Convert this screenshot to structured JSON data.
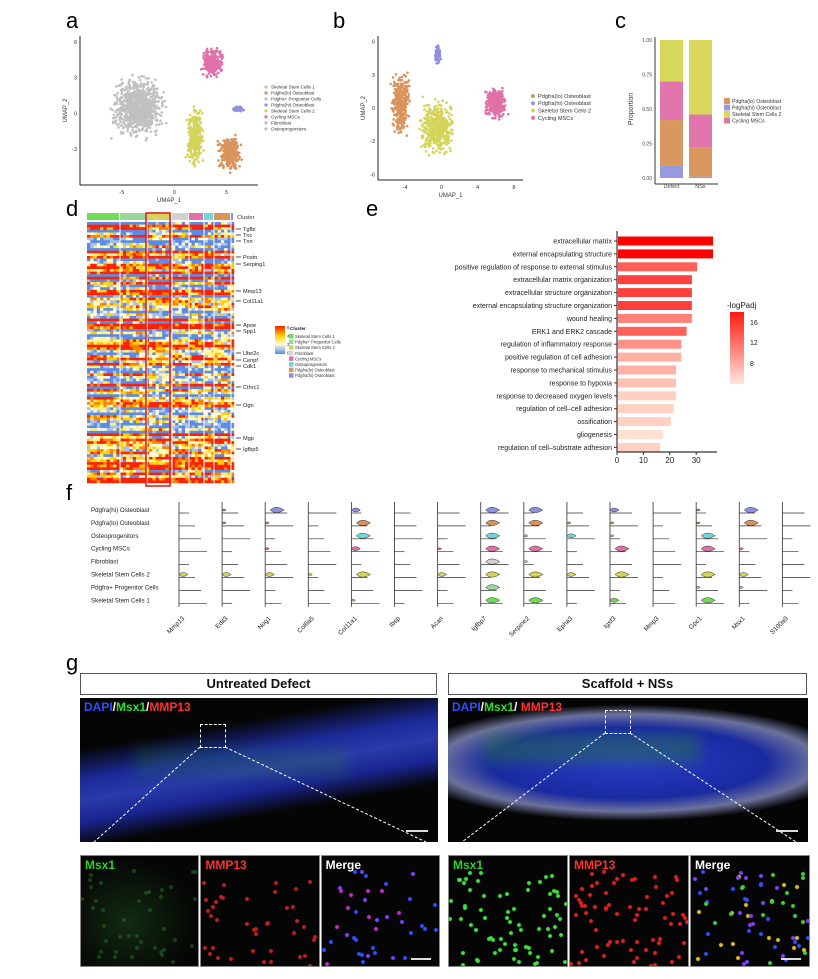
{
  "panel_labels": [
    "a",
    "b",
    "c",
    "d",
    "e",
    "f",
    "g"
  ],
  "chart_data": [
    {
      "panel": "a",
      "type": "scatter",
      "xlabel": "UMAP_1",
      "ylabel": "UMAP_2",
      "xticks": [
        -5,
        0,
        5
      ],
      "yticks": [
        -3,
        0,
        3,
        6
      ],
      "xlim": [
        -9,
        8
      ],
      "ylim": [
        -6,
        6.5
      ],
      "legend": [
        {
          "name": "Skeletal Stem Cells 1",
          "color": "#c0c0c0"
        },
        {
          "name": "Pdgfra(lo) Osteoblast",
          "color": "#d9935c"
        },
        {
          "name": "Pdgfra+ Progenitor Cells",
          "color": "#c0c0c0"
        },
        {
          "name": "Pdgfra(hi) Osteoblast",
          "color": "#8f8fe0"
        },
        {
          "name": "Skeletal Stem Cells 2",
          "color": "#d4d45a"
        },
        {
          "name": "Cycling MSCs",
          "color": "#e070a8"
        },
        {
          "name": "Fibroblast",
          "color": "#c0c0c0"
        },
        {
          "name": "Osteoprogenitors",
          "color": "#c0c0c0"
        }
      ],
      "clusters": [
        {
          "color": "#c0c0c0",
          "center": [
            -3.5,
            0.5
          ],
          "spread": [
            3,
            3
          ],
          "n": 900
        },
        {
          "color": "#e070a8",
          "center": [
            3.7,
            4.3
          ],
          "spread": [
            1.3,
            1.5
          ],
          "n": 250
        },
        {
          "color": "#d4d45a",
          "center": [
            2,
            -2
          ],
          "spread": [
            1,
            3
          ],
          "n": 350
        },
        {
          "color": "#d9935c",
          "center": [
            5.3,
            -3.3
          ],
          "spread": [
            1.3,
            1.8
          ],
          "n": 300
        },
        {
          "color": "#8f8fe0",
          "center": [
            6.2,
            0.4
          ],
          "spread": [
            0.8,
            0.3
          ],
          "n": 40
        }
      ]
    },
    {
      "panel": "b",
      "type": "scatter",
      "xlabel": "UMAP_1",
      "ylabel": "UMAP_2",
      "xticks": [
        -4,
        0,
        4,
        8
      ],
      "yticks": [
        -6,
        -3,
        0,
        3,
        6
      ],
      "xlim": [
        -7,
        9
      ],
      "ylim": [
        -6.5,
        6.5
      ],
      "legend": [
        {
          "name": "Pdgfra(lo) Osteoblast",
          "color": "#d9935c"
        },
        {
          "name": "Pdgfra(hi) Osteoblast",
          "color": "#8f8fe0"
        },
        {
          "name": "Skeletal Stem Cells 2",
          "color": "#d4d45a"
        },
        {
          "name": "Cycling MSCs",
          "color": "#e070a8"
        }
      ],
      "clusters": [
        {
          "color": "#d9935c",
          "center": [
            -4.5,
            0.5
          ],
          "spread": [
            1.2,
            3.5
          ],
          "n": 350
        },
        {
          "color": "#8f8fe0",
          "center": [
            -0.4,
            4.8
          ],
          "spread": [
            0.4,
            1.2
          ],
          "n": 50
        },
        {
          "color": "#d4d45a",
          "center": [
            -0.5,
            -1.8
          ],
          "spread": [
            2.2,
            3
          ],
          "n": 450
        },
        {
          "color": "#e070a8",
          "center": [
            6,
            0.5
          ],
          "spread": [
            1.5,
            1.8
          ],
          "n": 300
        }
      ]
    },
    {
      "panel": "c",
      "type": "bar",
      "stacked": true,
      "ylabel": "Proportion",
      "categories": [
        "Defect",
        "NSs"
      ],
      "yticks": [
        "0.00",
        "0.25",
        "0.50",
        "0.75",
        "1.00"
      ],
      "ylim": [
        0,
        1
      ],
      "series": [
        {
          "name": "Pdgfra(hi) Osteoblast",
          "color": "#9999dd",
          "values": [
            0.09,
            0.01
          ]
        },
        {
          "name": "Pdgfra(lo) Osteoblast",
          "color": "#d9985f",
          "values": [
            0.33,
            0.21
          ]
        },
        {
          "name": "Cycling MSCs",
          "color": "#e275ac",
          "values": [
            0.28,
            0.24
          ]
        },
        {
          "name": "Skeletal Stem Cells 2",
          "color": "#d8d85c",
          "values": [
            0.3,
            0.54
          ]
        }
      ],
      "legend_order": [
        "Pdgfra(lo) Osteoblast",
        "Pdgfra(hi) Osteoblast",
        "Skeletal Stem Cells 2",
        "Cycling MSCs"
      ]
    },
    {
      "panel": "d",
      "type": "heatmap",
      "annotation_title": "Cluster",
      "clusters": [
        {
          "name": "Skeletal Stem Cells 1",
          "color": "#6fdc5a"
        },
        {
          "name": "Pdgfra+ Progenitor Cells",
          "color": "#9ad89a"
        },
        {
          "name": "Skeletal Stem Cells 2",
          "color": "#d4d45a"
        },
        {
          "name": "Fibroblast",
          "color": "#d8cfcf"
        },
        {
          "name": "Cycling MSCs",
          "color": "#e070a8"
        },
        {
          "name": "Osteoprogenitors",
          "color": "#70d8d8"
        },
        {
          "name": "Pdgfra(lo) Osteoblast",
          "color": "#d9935c"
        },
        {
          "name": "Pdgfra(hi) Osteoblast",
          "color": "#8f8fe0"
        }
      ],
      "genes": [
        "Tgfbi",
        "Tnc",
        "Tnn",
        "Postn",
        "Serping1",
        "Mmp13",
        "Col11a1",
        "Apoe",
        "Spp1",
        "Ube2c",
        "Cenpf",
        "Cdk1",
        "Cthrc1",
        "Ogn",
        "Mgp",
        "Igfbp5"
      ],
      "colorbar_ticks": [
        "6",
        "4",
        "2",
        "0"
      ],
      "highlighted_cluster": "Skeletal Stem Cells 2",
      "highlight_color": "#e02020"
    },
    {
      "panel": "e",
      "type": "bar",
      "orientation": "horizontal",
      "legend_title": "-logPadj",
      "colorbar_ticks": [
        8,
        12,
        16
      ],
      "xticks": [
        0,
        10,
        20,
        30
      ],
      "xlim": [
        0,
        37
      ],
      "categories": [
        "extracellular matrix",
        "external encapsulating structure",
        "positive regulation of response to external stimulus",
        "extracellular matrix organization",
        "extracellular structure organization",
        "external encapsulating structure organization",
        "wound healing",
        "ERK1 and ERK2 cascade",
        "regulation of inflammatory response",
        "positive regulation of cell adhesion",
        "response to mechanical stimulus",
        "response to hypoxia",
        "response to decreased oxygen levels",
        "regulation of cell–cell adhesion",
        "ossification",
        "gliogenesis",
        "regulation of cell–substrate adhesion"
      ],
      "values": [
        36,
        36,
        30,
        28,
        28,
        28,
        28,
        26,
        24,
        24,
        22,
        22,
        22,
        21,
        20,
        17,
        16
      ],
      "color_values": [
        18,
        18,
        12,
        14,
        14,
        14,
        10,
        12,
        9,
        7,
        7,
        6,
        5,
        5,
        5,
        4,
        5
      ]
    },
    {
      "panel": "f",
      "type": "violin",
      "rows": [
        "Pdgfra(hi) Osteoblast",
        "Pdgfra(lo) Osteoblast",
        "Osteoprogenitors",
        "Cycling MSCs",
        "Fibroblast",
        "Skeletal Stem Cells 2",
        "Pdgfra+ Progenitor Cells",
        "Skeletal Stem Cells 1"
      ],
      "row_colors": [
        "#8f8fe0",
        "#d9935c",
        "#70d8d8",
        "#e070a8",
        "#d8cfcf",
        "#d4d45a",
        "#9ad89a",
        "#6fdc5a"
      ],
      "genes": [
        "Mmp13",
        "Edil3",
        "Nog1",
        "Col6a5",
        "Col11a1",
        "Ibsp",
        "Acan",
        "Igfbp7",
        "Serpine2",
        "Epha3",
        "Igsf3",
        "Mmp3",
        "Gpc1",
        "Msx1",
        "S100a9"
      ],
      "expression_level": [
        [
          0,
          1,
          3,
          0,
          2,
          0,
          0,
          3,
          3,
          0,
          2,
          0,
          1,
          3,
          0
        ],
        [
          0,
          1,
          1,
          0,
          3,
          0,
          0,
          3,
          3,
          1,
          1,
          0,
          1,
          3,
          0
        ],
        [
          0,
          0,
          0,
          0,
          3,
          0,
          0,
          3,
          1,
          2,
          1,
          0,
          3,
          0,
          0
        ],
        [
          0,
          0,
          1,
          0,
          2,
          0,
          1,
          3,
          3,
          0,
          3,
          0,
          3,
          1,
          0
        ],
        [
          0,
          0,
          0,
          0,
          0,
          0,
          0,
          3,
          1,
          0,
          0,
          0,
          0,
          0,
          0
        ],
        [
          2,
          2,
          2,
          1,
          3,
          0,
          2,
          3,
          3,
          2,
          3,
          0,
          3,
          2,
          0
        ],
        [
          0,
          0,
          0,
          0,
          0,
          0,
          0,
          3,
          0,
          0,
          0,
          0,
          1,
          1,
          0
        ],
        [
          0,
          0,
          0,
          0,
          1,
          0,
          0,
          3,
          3,
          0,
          2,
          0,
          3,
          0,
          0
        ]
      ]
    }
  ],
  "panel_g": {
    "conditions": [
      {
        "title": "Untreated Defect",
        "overview_label": [
          {
            "text": "DAPI",
            "color": "#3050ff"
          },
          {
            "text": "/",
            "color": "#ffffff"
          },
          {
            "text": "Msx1",
            "color": "#30e030"
          },
          {
            "text": "/",
            "color": "#ffffff"
          },
          {
            "text": "MMP13",
            "color": "#ff3030"
          }
        ],
        "channels": [
          {
            "label": "Msx1",
            "color": "#30d030"
          },
          {
            "label": "MMP13",
            "color": "#ff3030"
          },
          {
            "label": "Merge",
            "color": "#ffffff"
          }
        ]
      },
      {
        "title": "Scaffold + NSs",
        "overview_label": [
          {
            "text": "DAPI",
            "color": "#3050ff"
          },
          {
            "text": "/",
            "color": "#ffffff"
          },
          {
            "text": "Msx1",
            "color": "#30e030"
          },
          {
            "text": "/ ",
            "color": "#ffffff"
          },
          {
            "text": "MMP13",
            "color": "#ff3030"
          }
        ],
        "channels": [
          {
            "label": "Msx1",
            "color": "#30d030"
          },
          {
            "label": "MMP13",
            "color": "#ff3030"
          },
          {
            "label": "Merge",
            "color": "#ffffff"
          }
        ]
      }
    ]
  }
}
